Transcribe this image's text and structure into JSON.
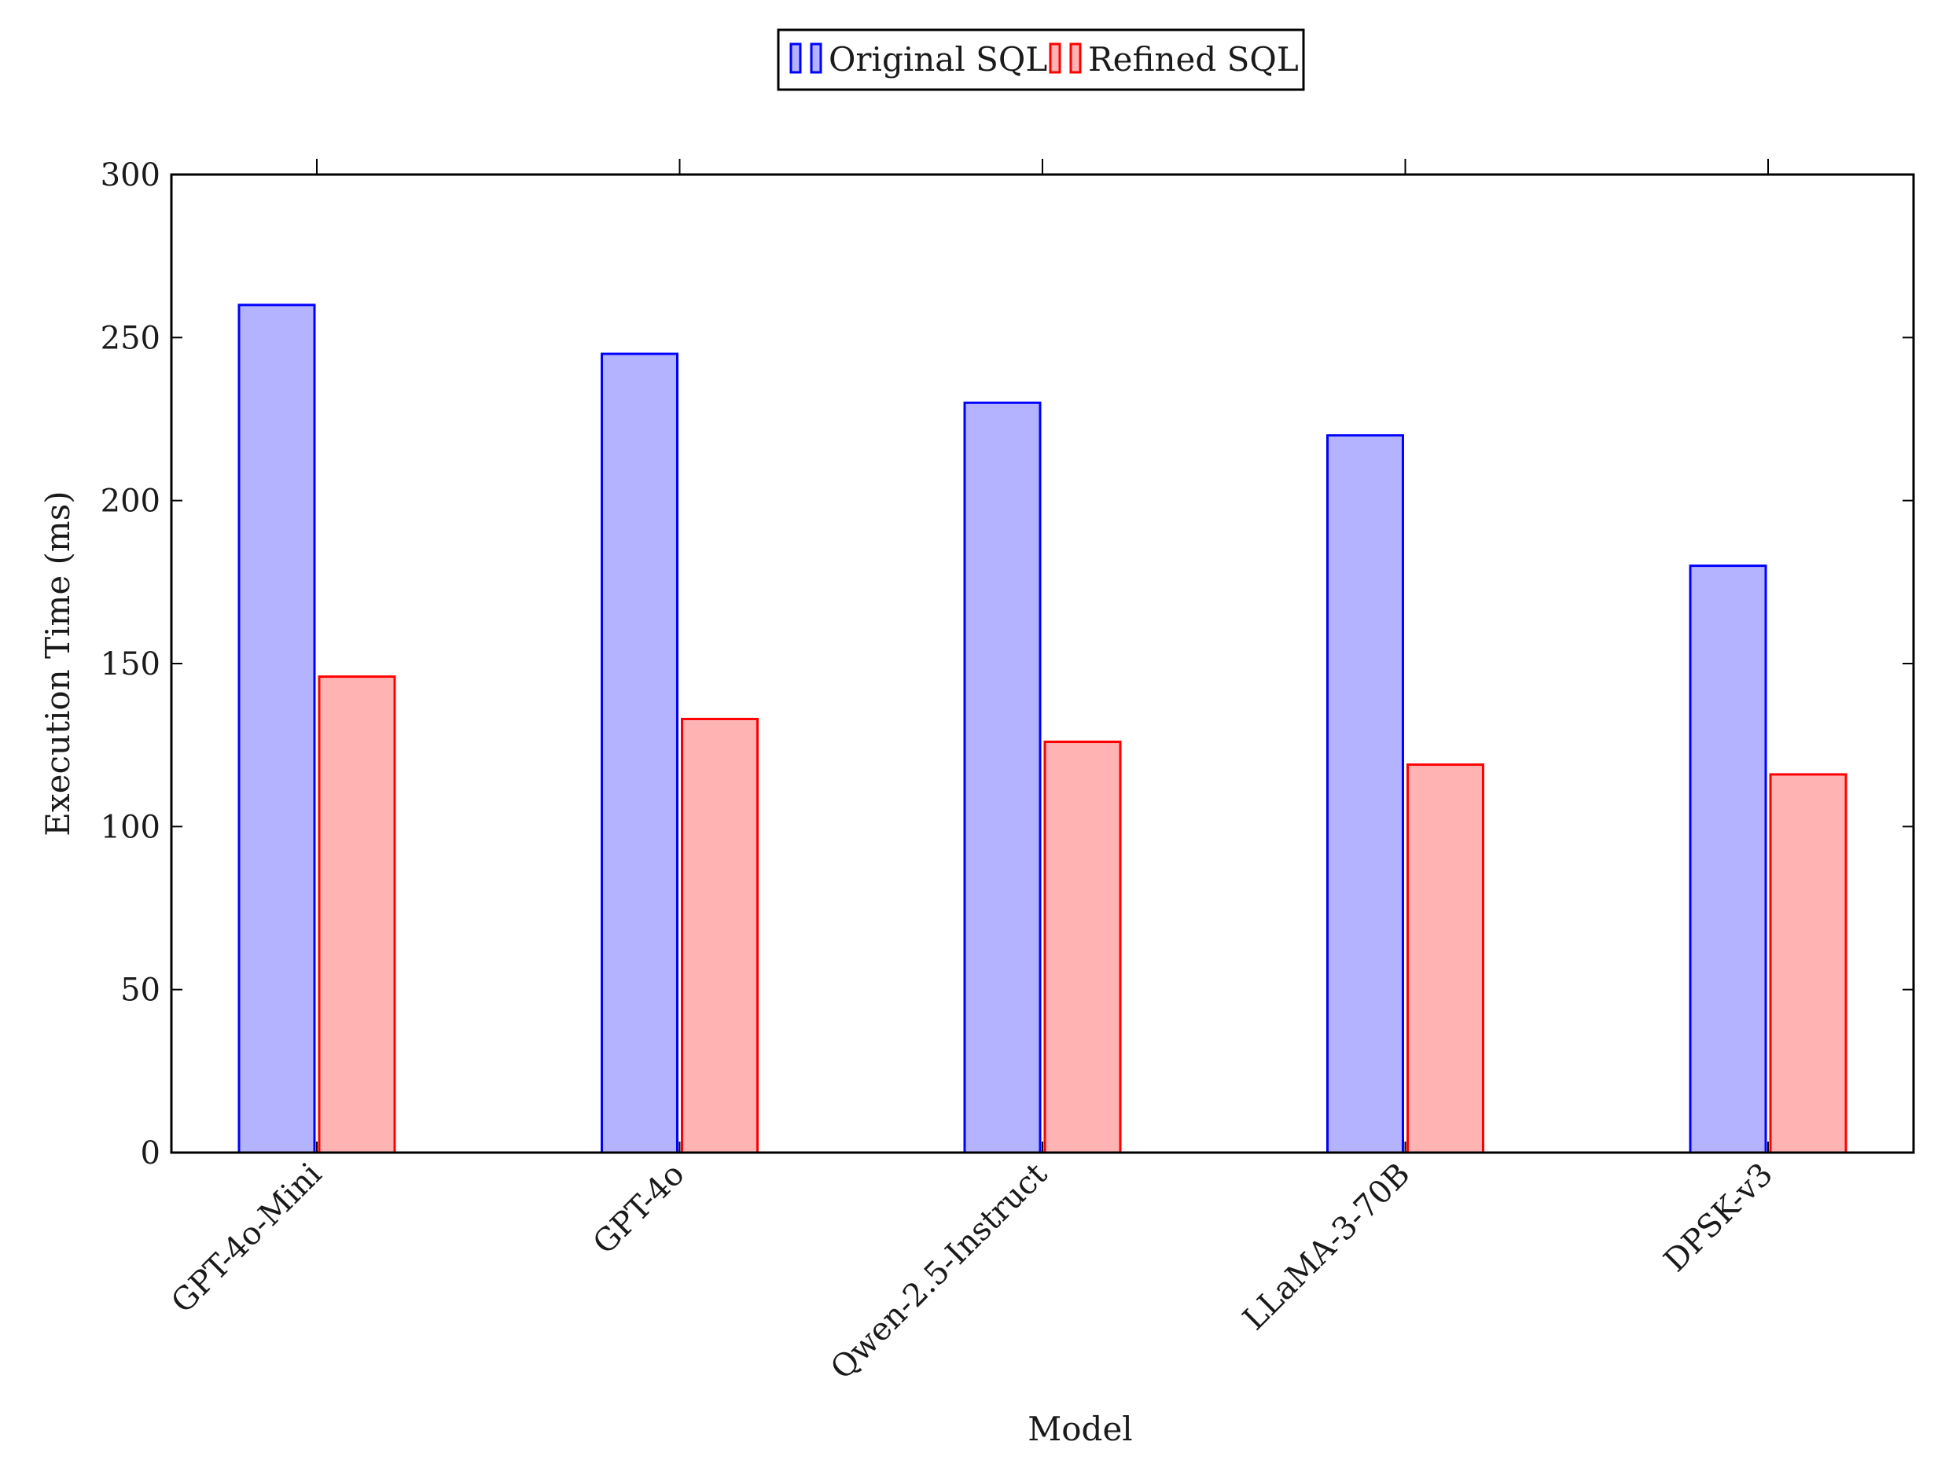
{
  "chart_data": {
    "type": "bar",
    "title": "",
    "xlabel": "Model",
    "ylabel": "Execution Time (ms)",
    "categories": [
      "GPT-4o-Mini",
      "GPT-4o",
      "Qwen-2.5-Instruct",
      "LLaMA-3-70B",
      "DPSK-v3"
    ],
    "series": [
      {
        "name": "Original SQL",
        "values": [
          260,
          245,
          230,
          220,
          180
        ],
        "color": "#0000ff",
        "fill": "#b3b3ff"
      },
      {
        "name": "Refined SQL",
        "values": [
          146,
          133,
          126,
          119,
          116
        ],
        "color": "#ff0000",
        "fill": "#ffb3b3"
      }
    ],
    "yticks": [
      0,
      50,
      100,
      150,
      200,
      250,
      300
    ],
    "ylim": [
      0,
      300
    ],
    "grid": false,
    "legend_position": "top-center"
  }
}
